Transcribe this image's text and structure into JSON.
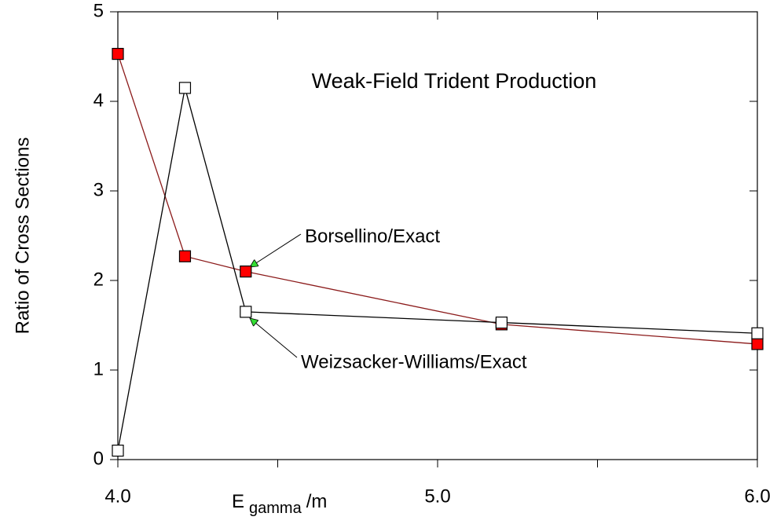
{
  "chart_data": {
    "type": "line",
    "title": "Weak-Field Trident Production",
    "ylabel": "Ratio of Cross Sections",
    "xlabel": {
      "main": "E",
      "subscript": "gamma",
      "suffix": "/m"
    },
    "x": [
      4.0,
      4.21,
      4.4,
      5.2,
      6.0
    ],
    "series": [
      {
        "name": "Borsellino/Exact",
        "color": "#ff0000",
        "line_color": "#8b1a1a",
        "values": [
          4.53,
          2.27,
          2.1,
          1.51,
          1.29
        ]
      },
      {
        "name": "Weizsacker-Williams/Exact",
        "color": "#ffffff",
        "line_color": "#000000",
        "values": [
          0.1,
          4.15,
          1.65,
          1.53,
          1.41
        ]
      }
    ],
    "xlim": [
      4.0,
      6.0
    ],
    "xticks": [
      {
        "value": 4,
        "label": "4.0"
      },
      {
        "value": 5,
        "label": "5.0"
      },
      {
        "value": 6,
        "label": "6.0"
      }
    ],
    "xminor_ticks": [
      4.5,
      5.5
    ],
    "ylim": [
      0,
      5
    ],
    "yticks": [
      0,
      1,
      2,
      3,
      4,
      5
    ],
    "grid": false
  }
}
